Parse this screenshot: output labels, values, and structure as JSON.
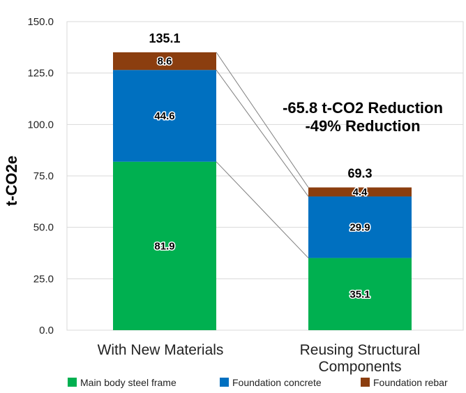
{
  "chart_data": {
    "type": "bar",
    "stacked": true,
    "categories": [
      "With New Materials",
      "Reusing Structural Components"
    ],
    "category_lines": [
      [
        "With New Materials"
      ],
      [
        "Reusing Structural",
        "Components"
      ]
    ],
    "series": [
      {
        "name": "Main body steel frame",
        "values": [
          81.9,
          35.1
        ],
        "color": "#00b050"
      },
      {
        "name": "Foundation concrete",
        "values": [
          44.6,
          29.9
        ],
        "color": "#0070c0"
      },
      {
        "name": "Foundation rebar",
        "values": [
          8.6,
          4.4
        ],
        "color": "#8b3e0f"
      }
    ],
    "totals": [
      "135.1",
      "69.3"
    ],
    "value_labels": [
      [
        "81.9",
        "44.6",
        "8.6"
      ],
      [
        "35.1",
        "29.9",
        "4.4"
      ]
    ],
    "ylabel": "t-CO2e",
    "ylim": [
      0,
      150
    ],
    "yticks": [
      "0.0",
      "25.0",
      "50.0",
      "75.0",
      "100.0",
      "125.0",
      "150.0"
    ],
    "grid": true,
    "legend_position": "bottom",
    "annotations": [
      "-65.8 t-CO2 Reduction",
      "-49% Reduction"
    ]
  }
}
